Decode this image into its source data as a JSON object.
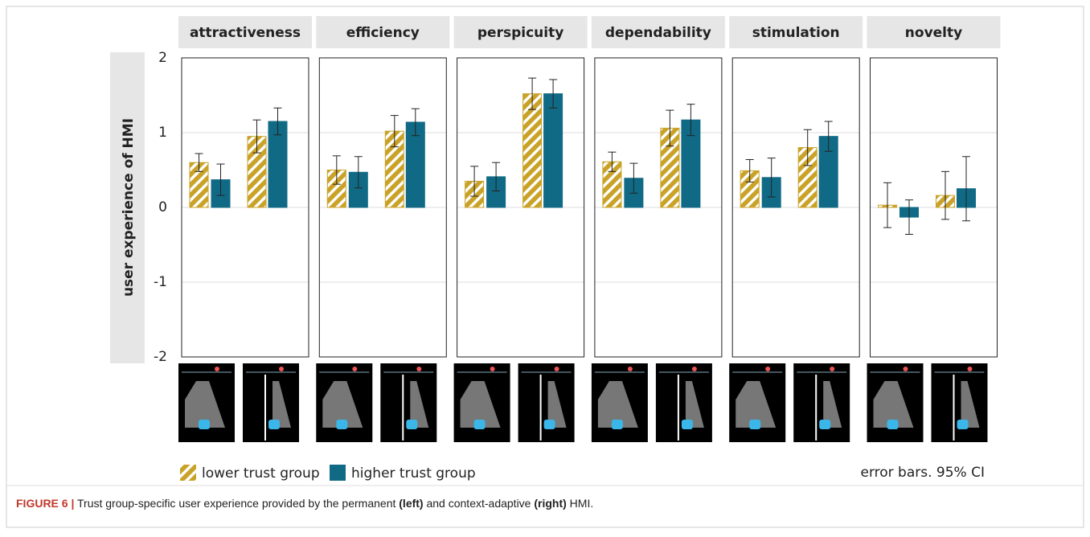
{
  "y_label": "user experience of HMI",
  "note": "error bars. 95% CI",
  "caption": [
    "FIGURE 6 |",
    " Trust group-specific user experience provided by the permanent ",
    "(left)",
    " and context-adaptive ",
    "(right)",
    " HMI."
  ],
  "chart_data": [
    {
      "type": "bar",
      "title": "attractiveness",
      "categories": [
        null,
        null
      ],
      "ylim": [
        -2,
        2
      ],
      "yticks": [
        -2,
        -1,
        0,
        1,
        2
      ],
      "grid": true,
      "series": [
        {
          "name": "lower trust group",
          "color": "#c9a227",
          "hatch": true,
          "values": [
            0.6,
            0.95
          ],
          "errors": [
            0.12,
            0.22
          ]
        },
        {
          "name": "higher trust group",
          "color": "#116a85",
          "values": [
            0.37,
            1.15
          ],
          "errors": [
            0.21,
            0.18
          ]
        }
      ]
    },
    {
      "type": "bar",
      "title": "efficiency",
      "categories": [
        null,
        null
      ],
      "ylim": [
        -2,
        2
      ],
      "yticks": [
        -2,
        -1,
        0,
        1,
        2
      ],
      "grid": true,
      "series": [
        {
          "name": "lower trust group",
          "color": "#c9a227",
          "hatch": true,
          "values": [
            0.5,
            1.02
          ],
          "errors": [
            0.19,
            0.21
          ]
        },
        {
          "name": "higher trust group",
          "color": "#116a85",
          "values": [
            0.47,
            1.14
          ],
          "errors": [
            0.21,
            0.18
          ]
        }
      ]
    },
    {
      "type": "bar",
      "title": "perspicuity",
      "categories": [
        null,
        null
      ],
      "ylim": [
        -2,
        2
      ],
      "yticks": [
        -2,
        -1,
        0,
        1,
        2
      ],
      "grid": true,
      "series": [
        {
          "name": "lower trust group",
          "color": "#c9a227",
          "hatch": true,
          "values": [
            0.35,
            1.52
          ],
          "errors": [
            0.2,
            0.21
          ]
        },
        {
          "name": "higher trust group",
          "color": "#116a85",
          "values": [
            0.41,
            1.52
          ],
          "errors": [
            0.19,
            0.19
          ]
        }
      ]
    },
    {
      "type": "bar",
      "title": "dependability",
      "categories": [
        null,
        null
      ],
      "ylim": [
        -2,
        2
      ],
      "yticks": [
        -2,
        -1,
        0,
        1,
        2
      ],
      "grid": true,
      "series": [
        {
          "name": "lower trust group",
          "color": "#c9a227",
          "hatch": true,
          "values": [
            0.61,
            1.06
          ],
          "errors": [
            0.13,
            0.24
          ]
        },
        {
          "name": "higher trust group",
          "color": "#116a85",
          "values": [
            0.39,
            1.17
          ],
          "errors": [
            0.2,
            0.21
          ]
        }
      ]
    },
    {
      "type": "bar",
      "title": "stimulation",
      "categories": [
        null,
        null
      ],
      "ylim": [
        -2,
        2
      ],
      "yticks": [
        -2,
        -1,
        0,
        1,
        2
      ],
      "grid": true,
      "series": [
        {
          "name": "lower trust group",
          "color": "#c9a227",
          "hatch": true,
          "values": [
            0.49,
            0.8
          ],
          "errors": [
            0.15,
            0.24
          ]
        },
        {
          "name": "higher trust group",
          "color": "#116a85",
          "values": [
            0.4,
            0.95
          ],
          "errors": [
            0.26,
            0.2
          ]
        }
      ]
    },
    {
      "type": "bar",
      "title": "novelty",
      "categories": [
        null,
        null
      ],
      "ylim": [
        -2,
        2
      ],
      "yticks": [
        -2,
        -1,
        0,
        1,
        2
      ],
      "grid": true,
      "series": [
        {
          "name": "lower trust group",
          "color": "#c9a227",
          "hatch": true,
          "values": [
            0.03,
            0.16
          ],
          "errors": [
            0.3,
            0.32
          ]
        },
        {
          "name": "higher trust group",
          "color": "#116a85",
          "values": [
            -0.13,
            0.25
          ],
          "errors": [
            0.23,
            0.43
          ]
        }
      ]
    }
  ]
}
